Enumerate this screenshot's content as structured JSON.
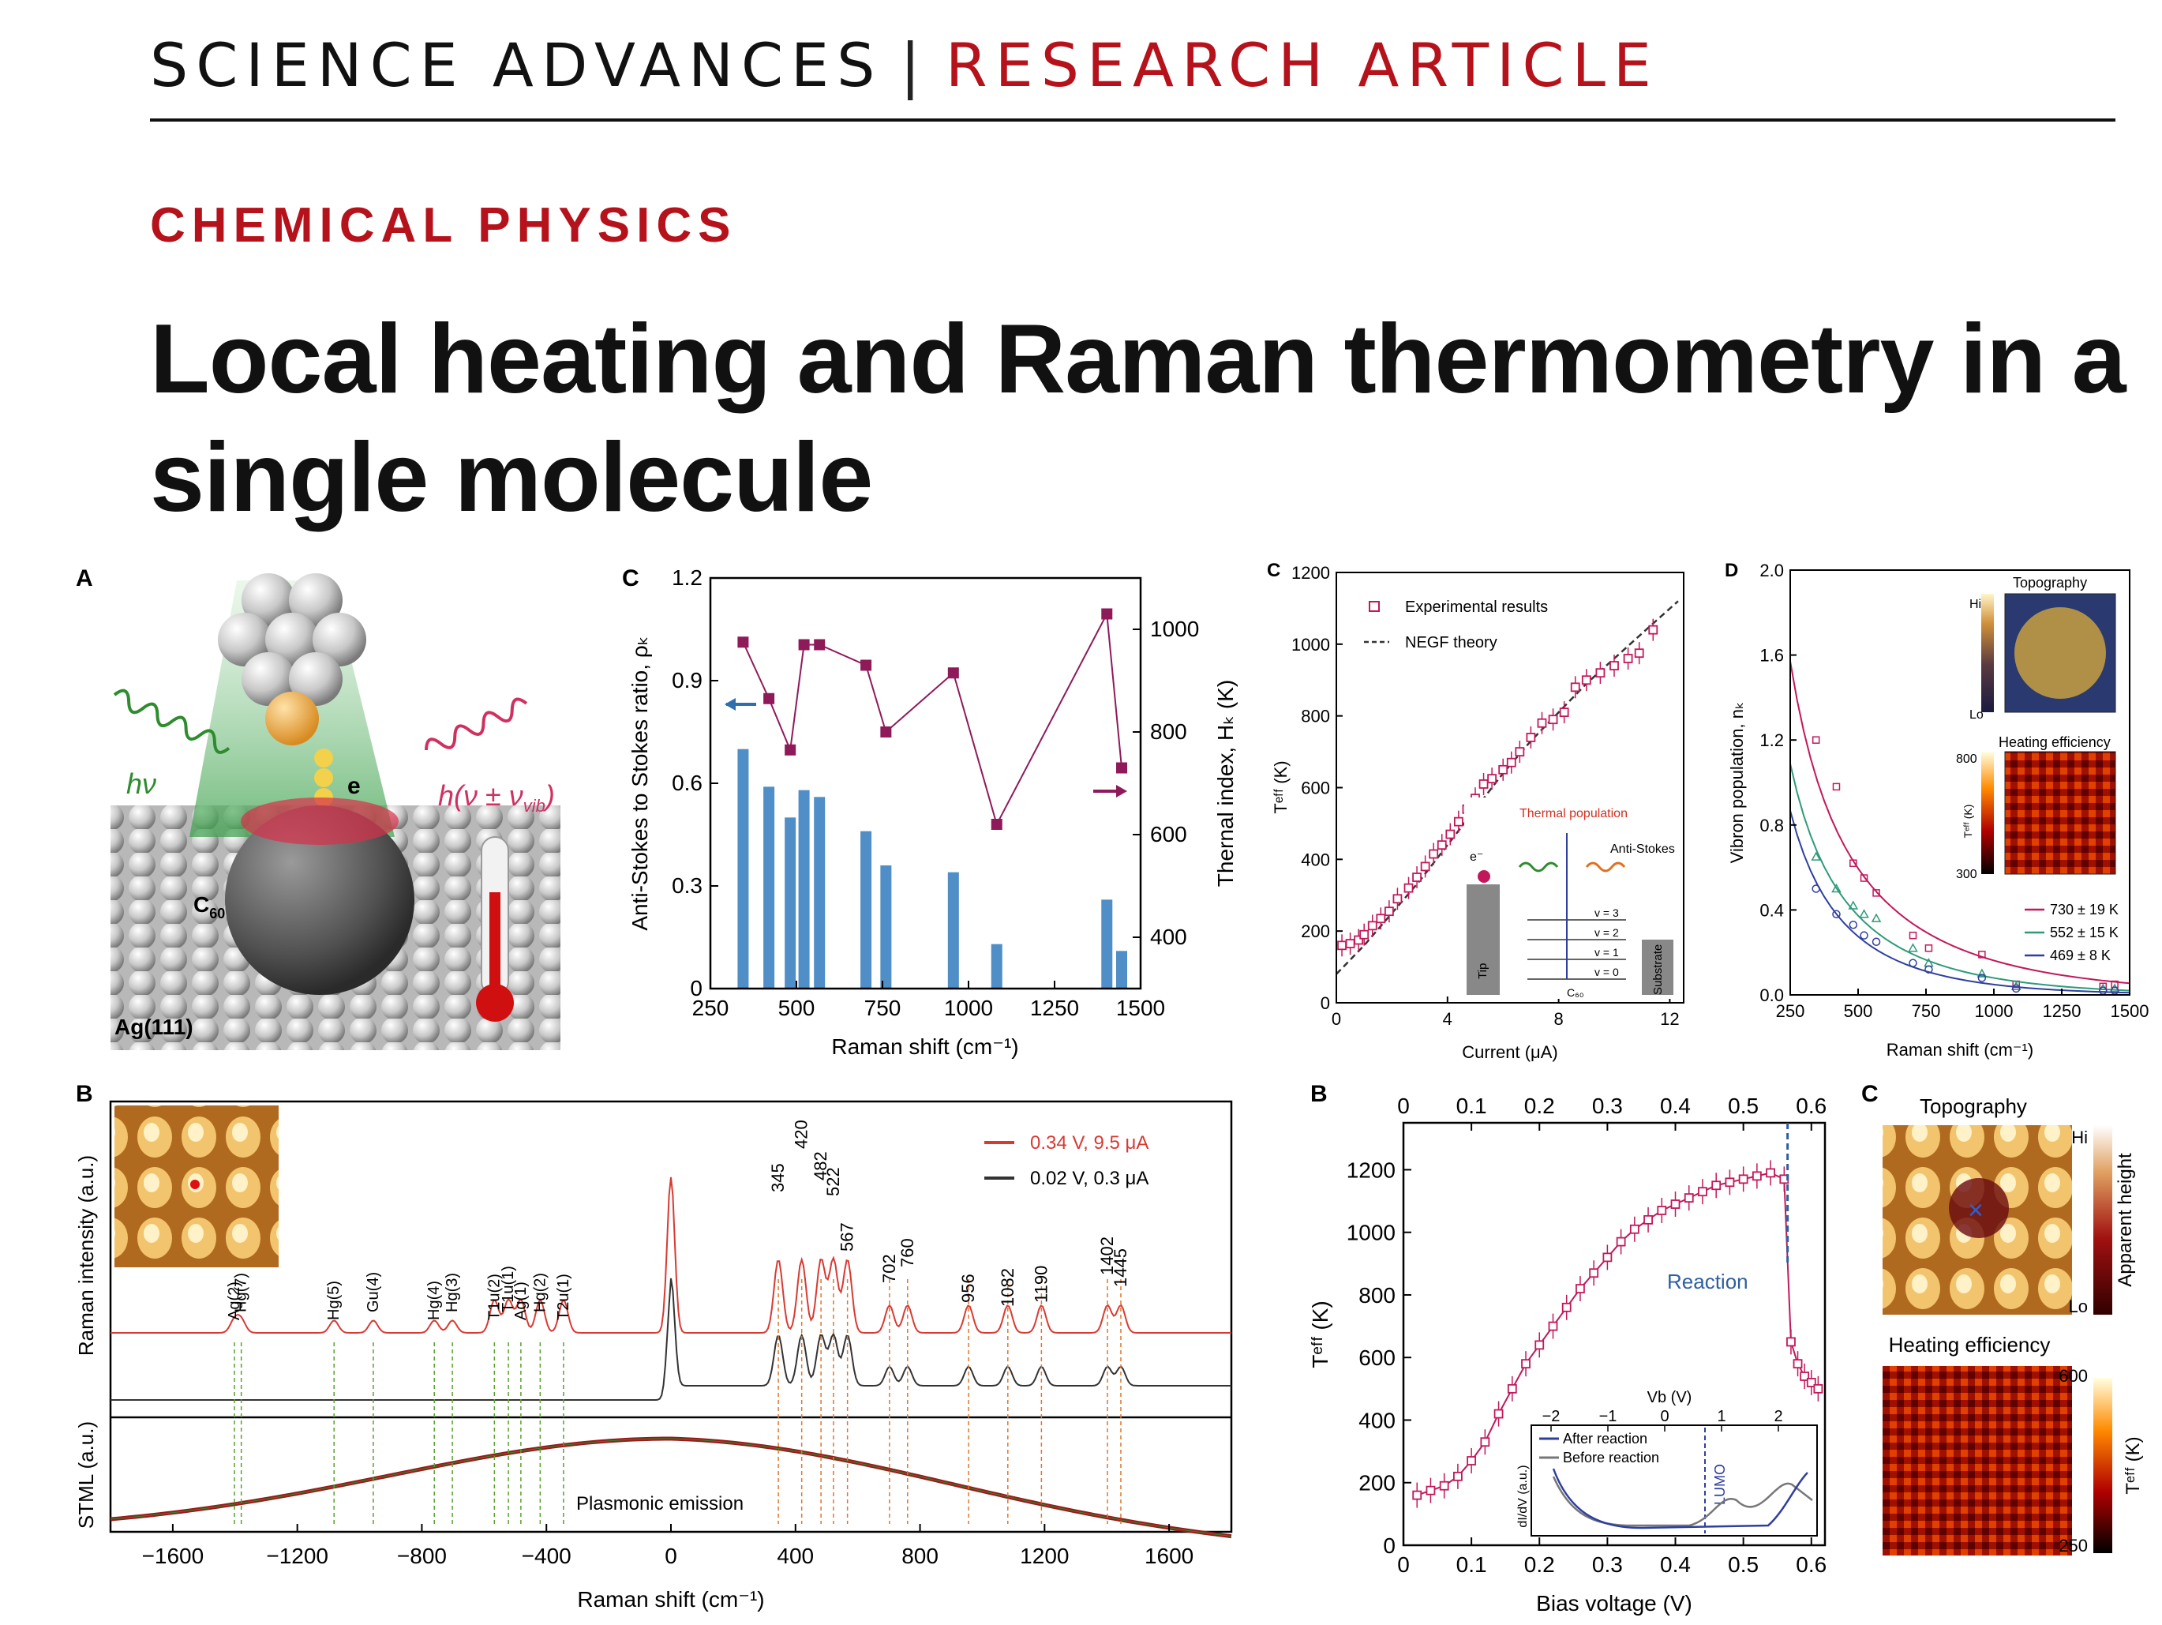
{
  "header": {
    "journal": "SCIENCE ADVANCES",
    "separator": "|",
    "article_type": "RESEARCH ARTICLE",
    "section": "CHEMICAL PHYSICS",
    "title": "Local heating and Raman thermometry in a single molecule"
  },
  "colors": {
    "red": "#b5121b",
    "magenta": "#c2185b",
    "purple": "#8e1a5a",
    "blue": "#4f8ec6",
    "green": "#5aa02c",
    "orange": "#e0762a"
  },
  "panelA": {
    "letter": "A",
    "hv": "hν",
    "hvib": "h(ν ± ν",
    "hvib_sub": "vib",
    "hvib_end": ")",
    "e": "e",
    "c60": "C",
    "c60_sub": "60",
    "ag": "Ag(111)"
  },
  "panelC1": {
    "letter": "C",
    "xlabel": "Raman shift (cm⁻¹)",
    "ylabel_left": "Anti-Stokes to Stokes ratio, ρₖ",
    "ylabel_right": "Thernal index, Hₖ (K)",
    "xticks": [
      "250",
      "500",
      "750",
      "1000",
      "1250",
      "1500"
    ],
    "yticks_left": [
      "0",
      "0.3",
      "0.6",
      "0.9",
      "1.2"
    ],
    "yticks_right": [
      "400",
      "600",
      "800",
      "1000"
    ]
  },
  "panelC2": {
    "letter": "C",
    "xlabel": "Current (μA)",
    "ylabel": "Tᵉᶠᶠ (K)",
    "xticks": [
      "0",
      "4",
      "8",
      "12"
    ],
    "yticks": [
      "0",
      "200",
      "400",
      "600",
      "800",
      "1000",
      "1200"
    ],
    "legend_exp": "Experimental results",
    "legend_theory": "NEGF theory",
    "inset": {
      "thermal": "Thermal population",
      "antistokes": "Anti-Stokes",
      "e": "e⁻",
      "tip": "Tip",
      "substrate": "Substrate",
      "c60": "C₆₀",
      "v3": "v = 3",
      "v2": "v = 2",
      "v1": "v = 1",
      "v0": "v = 0"
    }
  },
  "panelD": {
    "letter": "D",
    "xlabel": "Raman shift (cm⁻¹)",
    "ylabel": "Vibron population, nₖ",
    "xticks": [
      "250",
      "500",
      "750",
      "1000",
      "1250",
      "1500"
    ],
    "yticks": [
      "0.0",
      "0.4",
      "0.8",
      "1.2",
      "1.6",
      "2.0"
    ],
    "topography": "Topography",
    "heating": "Heating efficiency",
    "hi": "Hi",
    "lo": "Lo",
    "scale_top": "800",
    "scale_bot": "300",
    "scale_label": "Tᵉᶠᶠ (K)",
    "legend": [
      "730 ± 19 K",
      "552 ± 15 K",
      "469 ± 8 K"
    ]
  },
  "panelB1": {
    "letter": "B",
    "ylabel_top": "Raman intensity  (a.u.)",
    "ylabel_bottom": "STML (a.u.)",
    "xlabel": "Raman shift (cm⁻¹)",
    "xticks": [
      "−1600",
      "−1200",
      "−800",
      "−400",
      "0",
      "400",
      "800",
      "1200",
      "1600"
    ],
    "legend_red": "0.34 V, 9.5 μA",
    "legend_black": "0.02 V, 0.3 μA",
    "plasmonic": "Plasmonic emission",
    "green_labels": [
      "Ag(2)",
      "Hg(7)",
      "Hg(5)",
      "Gu(4)",
      "Hg(4)",
      "Hg(3)",
      "T1u(2)",
      "T1u(1)",
      "Ag(1)",
      "Hg(2)",
      "T2u(1)"
    ],
    "orange_labels": [
      "345",
      "420",
      "482",
      "522",
      "567",
      "702",
      "760",
      "956",
      "1082",
      "1190",
      "1402",
      "1445"
    ]
  },
  "panelB2": {
    "letter": "B",
    "xlabel": "Bias voltage (V)",
    "ylabel": "Tᵉᶠᶠ (K)",
    "xticks": [
      "0",
      "0.1",
      "0.2",
      "0.3",
      "0.4",
      "0.5",
      "0.6"
    ],
    "yticks": [
      "0",
      "200",
      "400",
      "600",
      "800",
      "1000",
      "1200"
    ],
    "reaction": "Reaction",
    "inset": {
      "xlabel": "Vb (V)",
      "ylabel": "dI/dV (a.u.)",
      "xticks": [
        "−2",
        "−1",
        "0",
        "1",
        "2"
      ],
      "after": "After reaction",
      "before": "Before reaction",
      "lumo": "LUMO"
    }
  },
  "panelC3": {
    "letter": "C",
    "topography": "Topography",
    "heating": "Heating efficiency",
    "hi": "Hi",
    "lo": "Lo",
    "apparent": "Apparent height",
    "scale_top": "600",
    "scale_bot": "250",
    "scale_label": "Tᵉᶠᶠ (K)"
  },
  "chart_data": [
    {
      "type": "bar",
      "panel": "C (top middle)",
      "xlabel": "Raman shift (cm⁻¹)",
      "ylabel": "Anti-Stokes to Stokes ratio, ρₖ",
      "xlim": [
        250,
        1500
      ],
      "ylim": [
        0,
        1.2
      ],
      "x": [
        345,
        420,
        482,
        522,
        567,
        702,
        760,
        956,
        1082,
        1402,
        1445
      ],
      "values": [
        0.7,
        0.59,
        0.5,
        0.58,
        0.56,
        0.46,
        0.36,
        0.34,
        0.13,
        0.26,
        0.11
      ],
      "series_right": {
        "type": "line",
        "ylabel": "Thernal index, Hₖ (K)",
        "ylim": [
          300,
          1100
        ],
        "x": [
          345,
          420,
          482,
          522,
          567,
          702,
          760,
          956,
          1082,
          1402,
          1445
        ],
        "values": [
          975,
          865,
          765,
          970,
          970,
          930,
          800,
          915,
          620,
          1030,
          730
        ]
      }
    },
    {
      "type": "scatter",
      "panel": "C (top right)",
      "xlabel": "Current (μA)",
      "ylabel": "Tᵉᶠᶠ (K)",
      "xlim": [
        0,
        12.5
      ],
      "ylim": [
        0,
        1200
      ],
      "series": [
        {
          "name": "Experimental results",
          "x": [
            0.2,
            0.5,
            0.8,
            1.0,
            1.3,
            1.6,
            1.9,
            2.2,
            2.6,
            2.9,
            3.2,
            3.5,
            3.8,
            4.1,
            4.4,
            4.7,
            5.0,
            5.3,
            5.6,
            6.0,
            6.3,
            6.6,
            7.0,
            7.4,
            7.8,
            8.2,
            8.6,
            9.0,
            9.5,
            10.0,
            10.5,
            10.9,
            11.4
          ],
          "values": [
            160,
            165,
            175,
            190,
            215,
            235,
            255,
            290,
            320,
            350,
            380,
            415,
            440,
            470,
            505,
            540,
            570,
            610,
            625,
            650,
            670,
            700,
            740,
            780,
            790,
            810,
            880,
            900,
            920,
            940,
            960,
            975,
            1040
          ]
        },
        {
          "name": "NEGF theory",
          "x": [
            0,
            1,
            2,
            3,
            4,
            5,
            6,
            7,
            8,
            9,
            10,
            11,
            12.3
          ],
          "values": [
            80,
            160,
            250,
            340,
            440,
            540,
            640,
            730,
            810,
            890,
            960,
            1030,
            1120
          ]
        }
      ]
    },
    {
      "type": "scatter",
      "panel": "D",
      "xlabel": "Raman shift (cm⁻¹)",
      "ylabel": "Vibron population, nₖ",
      "xlim": [
        250,
        1500
      ],
      "ylim": [
        0,
        2.0
      ],
      "series": [
        {
          "name": "730 ± 19 K",
          "x": [
            345,
            420,
            482,
            522,
            567,
            702,
            760,
            956,
            1082,
            1402,
            1445
          ],
          "values": [
            1.2,
            0.98,
            0.62,
            0.55,
            0.48,
            0.28,
            0.22,
            0.19,
            0.05,
            0.04,
            0.05
          ]
        },
        {
          "name": "552 ± 15 K",
          "x": [
            345,
            420,
            482,
            522,
            567,
            702,
            760,
            956,
            1082,
            1402,
            1445
          ],
          "values": [
            0.65,
            0.5,
            0.42,
            0.38,
            0.36,
            0.22,
            0.15,
            0.1,
            0.04,
            0.03,
            0.03
          ]
        },
        {
          "name": "469 ± 8 K",
          "x": [
            345,
            420,
            482,
            522,
            567,
            702,
            760,
            956,
            1082,
            1402,
            1445
          ],
          "values": [
            0.5,
            0.38,
            0.33,
            0.28,
            0.25,
            0.15,
            0.12,
            0.08,
            0.03,
            0.02,
            0.02
          ]
        }
      ]
    },
    {
      "type": "line",
      "panel": "B (bottom left)",
      "xlabel": "Raman shift (cm⁻¹)",
      "xlim": [
        -1800,
        1800
      ],
      "series": [
        {
          "name": "0.34 V, 9.5 μA",
          "peaks_x": [
            -1402,
            -1380,
            -1082,
            -956,
            -760,
            -702,
            -567,
            -522,
            -482,
            -420,
            -345,
            0,
            345,
            420,
            482,
            522,
            567,
            702,
            760,
            956,
            1082,
            1190,
            1402,
            1445
          ]
        },
        {
          "name": "0.02 V, 0.3 μA",
          "peaks_x": [
            0,
            345,
            420,
            482,
            522,
            567,
            702,
            760,
            956,
            1082,
            1190,
            1402,
            1445
          ]
        }
      ]
    },
    {
      "type": "line",
      "panel": "B (bottom middle)",
      "xlabel": "Bias voltage (V)",
      "ylabel": "Tᵉᶠᶠ (K)",
      "xlim": [
        0,
        0.62
      ],
      "ylim": [
        0,
        1350
      ],
      "x": [
        0.02,
        0.04,
        0.06,
        0.08,
        0.1,
        0.12,
        0.14,
        0.16,
        0.18,
        0.2,
        0.22,
        0.24,
        0.26,
        0.28,
        0.3,
        0.32,
        0.34,
        0.36,
        0.38,
        0.4,
        0.42,
        0.44,
        0.46,
        0.48,
        0.5,
        0.52,
        0.54,
        0.56,
        0.57,
        0.58,
        0.59,
        0.6,
        0.61
      ],
      "values": [
        160,
        175,
        190,
        220,
        270,
        330,
        420,
        500,
        580,
        640,
        700,
        760,
        820,
        870,
        920,
        970,
        1010,
        1040,
        1070,
        1090,
        1110,
        1130,
        1150,
        1160,
        1170,
        1180,
        1190,
        1170,
        650,
        580,
        540,
        520,
        500
      ]
    }
  ]
}
